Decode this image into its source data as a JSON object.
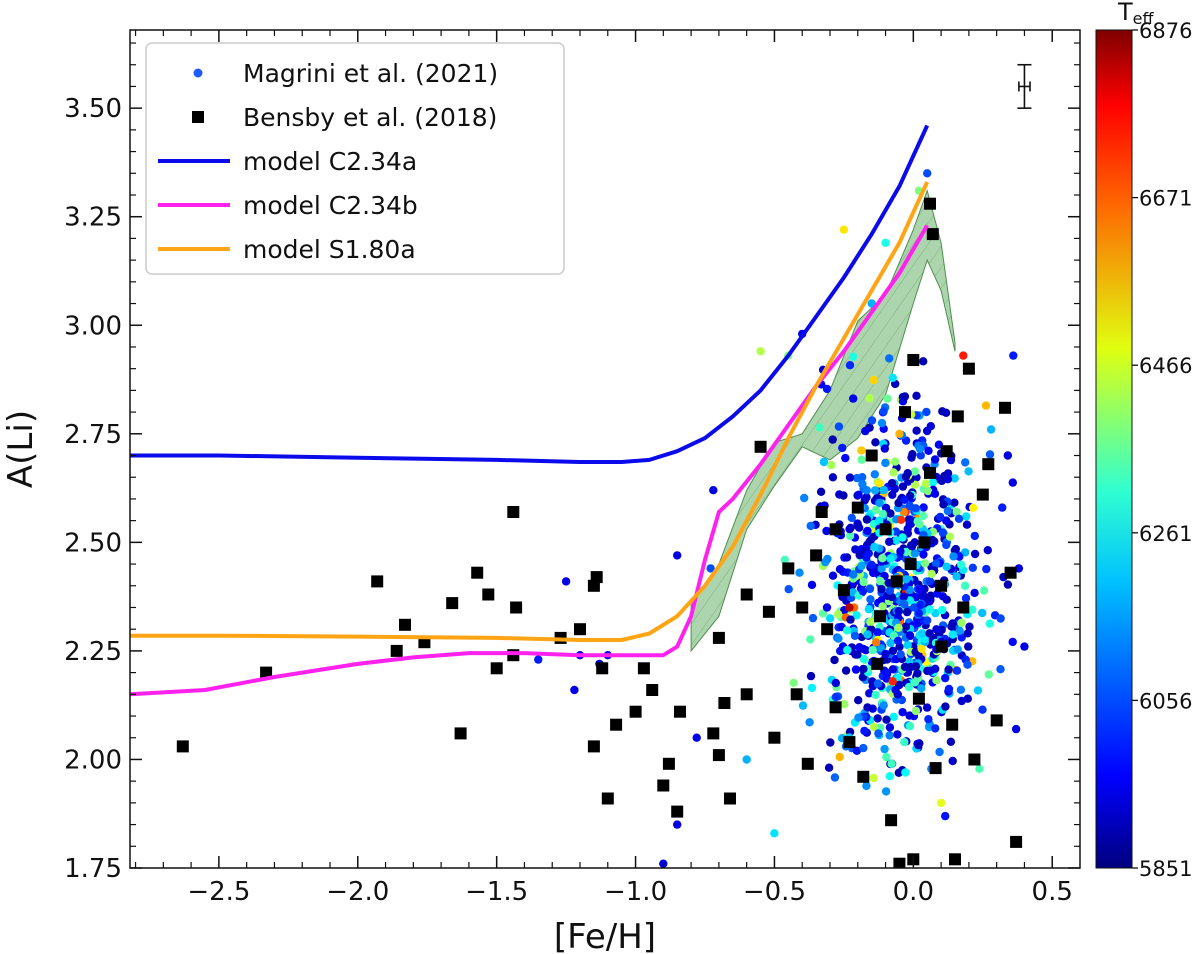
{
  "chart_data": {
    "type": "scatter",
    "xlabel": "[Fe/H]",
    "ylabel": "A(Li)",
    "xlim": [
      -2.82,
      0.6
    ],
    "ylim": [
      1.75,
      3.68
    ],
    "x_ticks": [
      -2.5,
      -2.0,
      -1.5,
      -1.0,
      -0.5,
      0.0,
      0.5
    ],
    "x_tick_labels": [
      "−2.5",
      "−2.0",
      "−1.5",
      "−1.0",
      "−0.5",
      "0.0",
      "0.5"
    ],
    "y_ticks": [
      1.75,
      2.0,
      2.25,
      2.5,
      2.75,
      3.0,
      3.25,
      3.5
    ],
    "y_tick_labels": [
      "1.75",
      "2.00",
      "2.25",
      "2.50",
      "2.75",
      "3.00",
      "3.25",
      "3.50"
    ],
    "colorbar": {
      "title_main": "T",
      "title_sub": "eff",
      "range": [
        5851,
        6876
      ],
      "ticks": [
        5851,
        6056,
        6261,
        6466,
        6671,
        6876
      ],
      "tick_labels": [
        "5851",
        "6056",
        "6261",
        "6466",
        "6671",
        "6876"
      ],
      "colormap": "jet"
    },
    "legend": [
      {
        "label": "Magrini et al. (2021)",
        "kind": "dot",
        "color": "#1f5cff"
      },
      {
        "label": "Bensby et al. (2018)",
        "kind": "square",
        "color": "#000000"
      },
      {
        "label": "model C2.34a",
        "kind": "line",
        "color": "#0a0aeb"
      },
      {
        "label": "model C2.34b",
        "kind": "line",
        "color": "#ff22ee"
      },
      {
        "label": "model S1.80a",
        "kind": "line",
        "color": "#ffa515"
      }
    ],
    "error_bar": {
      "x": 0.4,
      "y": 3.55,
      "x_err": 0.02,
      "y_err": 0.05
    },
    "series_lines": [
      {
        "name": "model C2.34a",
        "color": "#0a0aeb",
        "x": [
          -2.82,
          -2.5,
          -2.0,
          -1.5,
          -1.2,
          -1.05,
          -0.95,
          -0.85,
          -0.75,
          -0.65,
          -0.55,
          -0.45,
          -0.35,
          -0.25,
          -0.15,
          -0.05,
          0.05
        ],
        "y": [
          2.7,
          2.7,
          2.695,
          2.69,
          2.685,
          2.685,
          2.69,
          2.71,
          2.74,
          2.79,
          2.85,
          2.93,
          3.02,
          3.11,
          3.21,
          3.32,
          3.46
        ]
      },
      {
        "name": "model C2.34b",
        "color": "#ff22ee",
        "x": [
          -2.82,
          -2.55,
          -2.3,
          -2.0,
          -1.8,
          -1.6,
          -1.4,
          -1.2,
          -1.0,
          -0.9,
          -0.85,
          -0.8,
          -0.75,
          -0.7,
          -0.65,
          -0.55,
          -0.45,
          -0.35,
          -0.25,
          -0.15,
          -0.05,
          0.05
        ],
        "y": [
          2.15,
          2.16,
          2.19,
          2.22,
          2.235,
          2.245,
          2.245,
          2.24,
          2.24,
          2.24,
          2.26,
          2.33,
          2.46,
          2.57,
          2.6,
          2.68,
          2.77,
          2.86,
          2.94,
          3.03,
          3.12,
          3.23
        ]
      },
      {
        "name": "model S1.80a",
        "color": "#ffa515",
        "x": [
          -2.82,
          -2.5,
          -2.0,
          -1.5,
          -1.2,
          -1.05,
          -0.95,
          -0.85,
          -0.75,
          -0.65,
          -0.55,
          -0.45,
          -0.35,
          -0.25,
          -0.15,
          -0.05,
          0.05
        ],
        "y": [
          2.285,
          2.285,
          2.283,
          2.28,
          2.275,
          2.275,
          2.29,
          2.33,
          2.4,
          2.49,
          2.61,
          2.74,
          2.86,
          2.97,
          3.08,
          3.19,
          3.33
        ]
      }
    ],
    "band": {
      "color": "#6ab36a",
      "upper": {
        "x": [
          -0.8,
          -0.7,
          -0.6,
          -0.5,
          -0.4,
          -0.3,
          -0.2,
          -0.1,
          0.0,
          0.05,
          0.1,
          0.15
        ],
        "y": [
          2.36,
          2.45,
          2.62,
          2.73,
          2.75,
          2.85,
          3.01,
          3.07,
          3.22,
          3.31,
          3.19,
          2.96
        ]
      },
      "lower": {
        "x": [
          -0.8,
          -0.7,
          -0.6,
          -0.5,
          -0.4,
          -0.3,
          -0.2,
          -0.1,
          0.0,
          0.05,
          0.1,
          0.15
        ],
        "y": [
          2.25,
          2.33,
          2.53,
          2.63,
          2.72,
          2.69,
          2.74,
          2.84,
          3.05,
          3.15,
          3.08,
          2.94
        ]
      }
    },
    "bensby_points": [
      [
        -2.63,
        2.03
      ],
      [
        -2.33,
        2.2
      ],
      [
        -1.93,
        2.41
      ],
      [
        -1.86,
        2.25
      ],
      [
        -1.83,
        2.31
      ],
      [
        -1.76,
        2.27
      ],
      [
        -1.66,
        2.36
      ],
      [
        -1.63,
        2.06
      ],
      [
        -1.57,
        2.43
      ],
      [
        -1.53,
        2.38
      ],
      [
        -1.5,
        2.21
      ],
      [
        -1.44,
        2.57
      ],
      [
        -1.43,
        2.35
      ],
      [
        -1.44,
        2.24
      ],
      [
        -1.27,
        2.28
      ],
      [
        -1.2,
        2.3
      ],
      [
        -1.15,
        2.4
      ],
      [
        -1.14,
        2.42
      ],
      [
        -1.12,
        2.21
      ],
      [
        -1.1,
        1.91
      ],
      [
        -1.15,
        2.03
      ],
      [
        -1.07,
        2.08
      ],
      [
        -1.0,
        2.11
      ],
      [
        -0.97,
        2.21
      ],
      [
        -0.94,
        2.16
      ],
      [
        -0.9,
        1.94
      ],
      [
        -0.88,
        1.99
      ],
      [
        -0.84,
        2.11
      ],
      [
        -0.85,
        1.88
      ],
      [
        -0.72,
        2.06
      ],
      [
        -0.68,
        2.13
      ],
      [
        -0.7,
        2.01
      ],
      [
        -0.66,
        1.91
      ],
      [
        -0.6,
        2.38
      ],
      [
        -0.55,
        2.72
      ],
      [
        -0.52,
        2.34
      ],
      [
        -0.45,
        2.44
      ],
      [
        -0.42,
        2.15
      ],
      [
        -0.38,
        1.99
      ],
      [
        -0.35,
        2.47
      ],
      [
        -0.33,
        2.57
      ],
      [
        -0.31,
        2.3
      ],
      [
        -0.28,
        2.12
      ],
      [
        -0.25,
        2.39
      ],
      [
        -0.23,
        2.04
      ],
      [
        -0.2,
        2.58
      ],
      [
        -0.18,
        1.96
      ],
      [
        -0.15,
        2.7
      ],
      [
        -0.13,
        2.22
      ],
      [
        -0.1,
        2.53
      ],
      [
        -0.08,
        1.86
      ],
      [
        -0.06,
        2.41
      ],
      [
        -0.03,
        2.8
      ],
      [
        -0.01,
        2.45
      ],
      [
        0.0,
        2.92
      ],
      [
        0.02,
        2.14
      ],
      [
        0.04,
        2.5
      ],
      [
        0.06,
        2.66
      ],
      [
        0.08,
        1.98
      ],
      [
        0.1,
        2.26
      ],
      [
        0.12,
        2.71
      ],
      [
        0.14,
        2.08
      ],
      [
        0.16,
        2.79
      ],
      [
        0.18,
        2.35
      ],
      [
        0.2,
        2.9
      ],
      [
        0.22,
        2.0
      ],
      [
        0.25,
        2.61
      ],
      [
        0.27,
        2.68
      ],
      [
        0.3,
        2.09
      ],
      [
        0.33,
        2.81
      ],
      [
        0.35,
        2.43
      ],
      [
        0.37,
        1.81
      ],
      [
        0.0,
        1.77
      ],
      [
        -0.05,
        1.76
      ],
      [
        0.15,
        1.77
      ],
      [
        -0.28,
        2.53
      ],
      [
        -0.4,
        2.35
      ],
      [
        -0.6,
        2.15
      ],
      [
        0.07,
        3.21
      ],
      [
        0.06,
        3.28
      ],
      [
        -0.7,
        2.28
      ],
      [
        -0.5,
        2.05
      ],
      [
        -0.12,
        2.33
      ],
      [
        0.1,
        2.4
      ]
    ]
  }
}
